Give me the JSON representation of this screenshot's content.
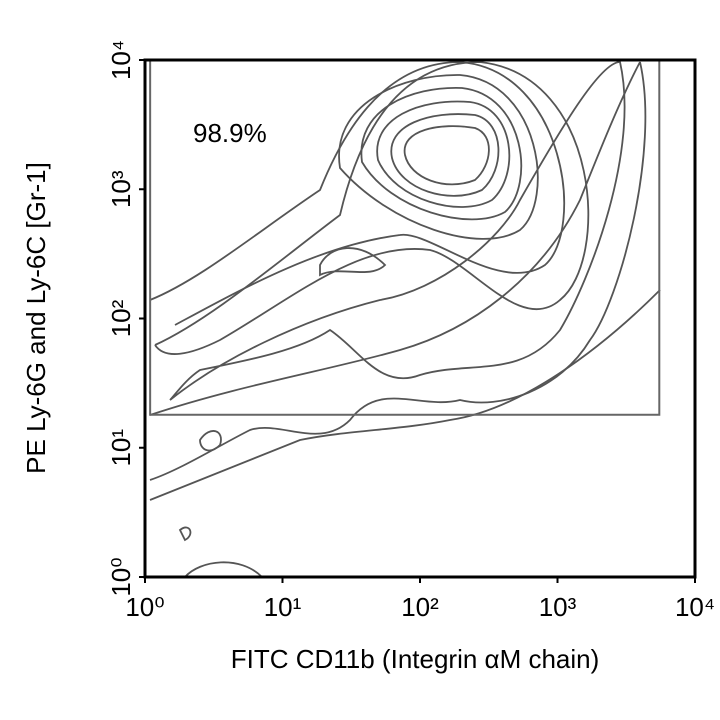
{
  "chart_data": {
    "type": "contour",
    "xlabel": "FITC CD11b (Integrin αM chain)",
    "ylabel": "PE Ly-6G and Ly-6C [Gr-1]",
    "xscale": "log",
    "yscale": "log",
    "xlim": [
      1,
      10000
    ],
    "ylim": [
      1,
      10000
    ],
    "xticks": [
      {
        "value": 1,
        "label": "10⁰"
      },
      {
        "value": 10,
        "label": "10¹"
      },
      {
        "value": 100,
        "label": "10²"
      },
      {
        "value": 1000,
        "label": "10³"
      },
      {
        "value": 10000,
        "label": "10⁴"
      }
    ],
    "yticks": [
      {
        "value": 1,
        "label": "10⁰"
      },
      {
        "value": 10,
        "label": "10¹"
      },
      {
        "value": 100,
        "label": "10²"
      },
      {
        "value": 1000,
        "label": "10³"
      },
      {
        "value": 10000,
        "label": "10⁴"
      }
    ],
    "gate": {
      "label": "98.9%",
      "xlim": [
        1.09,
        5500
      ],
      "ylim": [
        18,
        10000
      ]
    }
  }
}
